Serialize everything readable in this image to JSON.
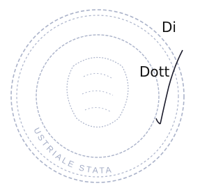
{
  "document": {
    "heading": "Di",
    "signatory": "Dott",
    "stamp": {
      "ring_text": "USTRIALE STATA"
    }
  }
}
